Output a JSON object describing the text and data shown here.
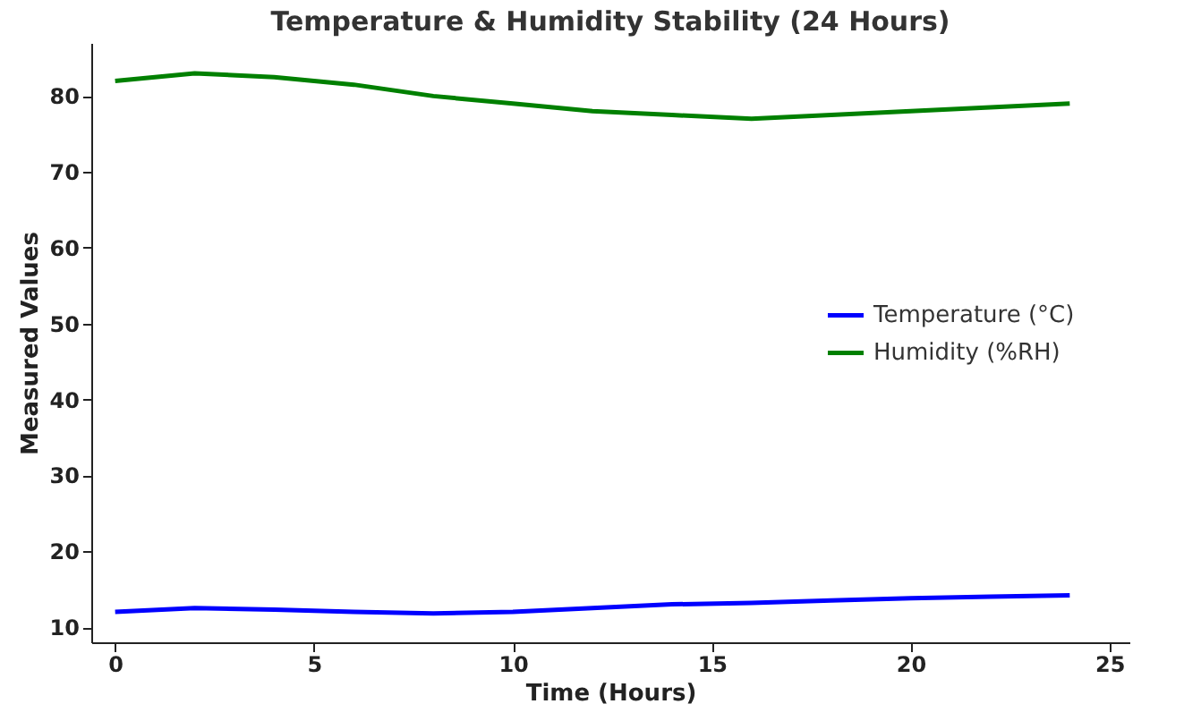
{
  "chart_data": {
    "type": "line",
    "title": "Temperature & Humidity Stability (24 Hours)",
    "xlabel": "Time (Hours)",
    "ylabel": "Measured Values",
    "x": [
      0,
      2,
      4,
      6,
      8,
      10,
      12,
      14,
      16,
      18,
      20,
      22,
      24
    ],
    "series": [
      {
        "name": "Temperature (°C)",
        "color": "#0000ff",
        "values": [
          12,
          12.5,
          12.3,
          12,
          11.8,
          12,
          12.5,
          13,
          13.2,
          13.5,
          13.8,
          14,
          14.2
        ]
      },
      {
        "name": "Humidity (%RH)",
        "color": "#008000",
        "values": [
          82,
          83,
          82.5,
          81.5,
          80,
          79,
          78,
          77.5,
          77,
          77.5,
          78,
          78.5,
          79
        ]
      }
    ],
    "xlim": [
      -0.6,
      25.5
    ],
    "ylim": [
      8,
      87
    ],
    "xticks": [
      0,
      5,
      10,
      15,
      20,
      25
    ],
    "yticks": [
      10,
      20,
      30,
      40,
      50,
      60,
      70,
      80
    ],
    "grid": false,
    "legend": "right",
    "marker": "none",
    "line_style": "solid"
  }
}
